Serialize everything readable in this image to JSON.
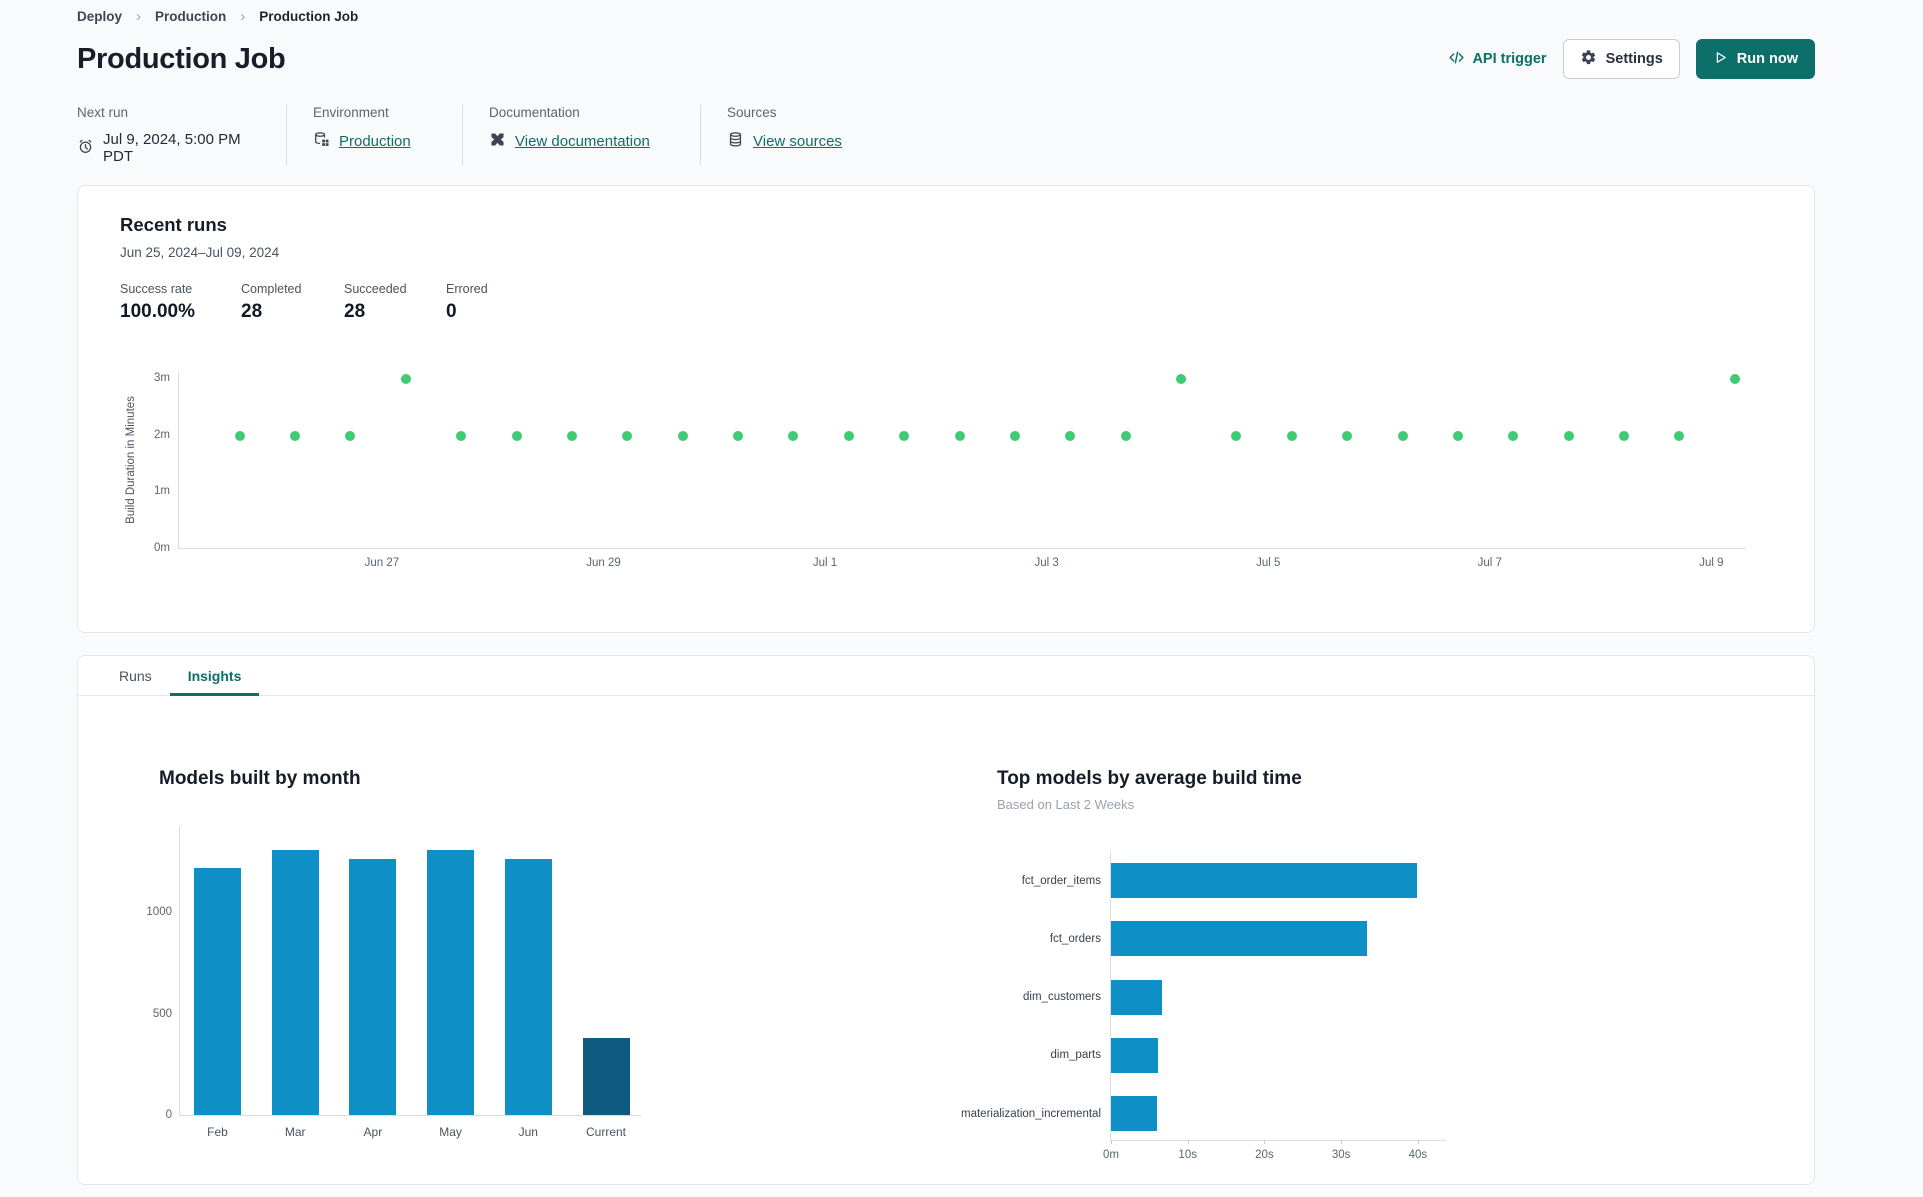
{
  "breadcrumb": {
    "items": [
      "Deploy",
      "Production",
      "Production Job"
    ]
  },
  "header": {
    "title": "Production Job",
    "api_trigger_label": "API trigger",
    "settings_label": "Settings",
    "run_now_label": "Run now"
  },
  "meta": {
    "next_run": {
      "label": "Next run",
      "value": "Jul 9, 2024, 5:00 PM PDT",
      "icon": "alarm-clock"
    },
    "environment": {
      "label": "Environment",
      "value": "Production",
      "icon": "database-grid"
    },
    "documentation": {
      "label": "Documentation",
      "value": "View documentation",
      "icon": "dbt-logo"
    },
    "sources": {
      "label": "Sources",
      "value": "View sources",
      "icon": "database-stack"
    }
  },
  "recent_runs": {
    "title": "Recent runs",
    "date_range": "Jun 25, 2024–Jul 09, 2024",
    "stats": [
      {
        "label": "Success rate",
        "value": "100.00%"
      },
      {
        "label": "Completed",
        "value": "28"
      },
      {
        "label": "Succeeded",
        "value": "28"
      },
      {
        "label": "Errored",
        "value": "0"
      }
    ]
  },
  "tabs": [
    {
      "label": "Runs",
      "active": false
    },
    {
      "label": "Insights",
      "active": true
    }
  ],
  "colors": {
    "accent_teal": "#0c6f6a",
    "dot_green": "#3ecb73",
    "bar_blue": "#0e8fc6",
    "bar_dark": "#0e5a80"
  },
  "chart_data": [
    {
      "type": "scatter",
      "title": "Recent runs build duration",
      "ylabel": "Build Duration in Minutes",
      "y_max": 3.14,
      "y_ticks": [
        {
          "label": "3m",
          "minutes": 3
        },
        {
          "label": "2m",
          "minutes": 2
        },
        {
          "label": "1m",
          "minutes": 1
        },
        {
          "label": "0m",
          "minutes": 0
        }
      ],
      "x_ticks": [
        {
          "label": "Jun 27",
          "pct": 12.95
        },
        {
          "label": "Jun 29",
          "pct": 27.09
        },
        {
          "label": "Jul 1",
          "pct": 41.23
        },
        {
          "label": "Jul 3",
          "pct": 55.37
        },
        {
          "label": "Jul 5",
          "pct": 69.51
        },
        {
          "label": "Jul 7",
          "pct": 83.65
        },
        {
          "label": "Jul 9",
          "pct": 97.79
        }
      ],
      "points": [
        {
          "x_pct": 3.87,
          "minutes": 1.98
        },
        {
          "x_pct": 7.4,
          "minutes": 1.98
        },
        {
          "x_pct": 10.94,
          "minutes": 1.98
        },
        {
          "x_pct": 14.47,
          "minutes": 2.98
        },
        {
          "x_pct": 18.0,
          "minutes": 1.98
        },
        {
          "x_pct": 21.54,
          "minutes": 1.98
        },
        {
          "x_pct": 25.07,
          "minutes": 1.98
        },
        {
          "x_pct": 28.61,
          "minutes": 1.98
        },
        {
          "x_pct": 32.14,
          "minutes": 1.98
        },
        {
          "x_pct": 35.67,
          "minutes": 1.98
        },
        {
          "x_pct": 39.21,
          "minutes": 1.98
        },
        {
          "x_pct": 42.74,
          "minutes": 1.98
        },
        {
          "x_pct": 46.27,
          "minutes": 1.98
        },
        {
          "x_pct": 49.81,
          "minutes": 1.98
        },
        {
          "x_pct": 53.34,
          "minutes": 1.98
        },
        {
          "x_pct": 56.88,
          "minutes": 1.98
        },
        {
          "x_pct": 60.41,
          "minutes": 1.98
        },
        {
          "x_pct": 63.94,
          "minutes": 2.98
        },
        {
          "x_pct": 67.48,
          "minutes": 1.98
        },
        {
          "x_pct": 71.01,
          "minutes": 1.98
        },
        {
          "x_pct": 74.54,
          "minutes": 1.98
        },
        {
          "x_pct": 78.08,
          "minutes": 1.98
        },
        {
          "x_pct": 81.61,
          "minutes": 1.98
        },
        {
          "x_pct": 85.15,
          "minutes": 1.98
        },
        {
          "x_pct": 88.68,
          "minutes": 1.98
        },
        {
          "x_pct": 92.21,
          "minutes": 1.98
        },
        {
          "x_pct": 95.75,
          "minutes": 1.98
        },
        {
          "x_pct": 99.28,
          "minutes": 2.98
        }
      ]
    },
    {
      "type": "bar",
      "title": "Models built by month",
      "categories": [
        "Feb",
        "Mar",
        "Apr",
        "May",
        "Jun",
        "Current"
      ],
      "values": [
        1220,
        1305,
        1260,
        1305,
        1260,
        380
      ],
      "ylim": [
        0,
        1430
      ],
      "y_ticks": [
        0,
        500,
        1000
      ],
      "bar_colors": [
        "#0e8fc6",
        "#0e8fc6",
        "#0e8fc6",
        "#0e8fc6",
        "#0e8fc6",
        "#0e5a80"
      ]
    },
    {
      "type": "bar_horizontal",
      "title": "Top models by average build time",
      "subtitle": "Based on Last 2 Weeks",
      "categories": [
        "fct_order_items",
        "fct_orders",
        "dim_customers",
        "dim_parts",
        "materialization_incremental"
      ],
      "values_seconds": [
        39.9,
        33.4,
        6.6,
        6.1,
        6.0
      ],
      "xlim": [
        0,
        43.8
      ],
      "x_ticks": [
        {
          "label": "0m",
          "seconds": 0
        },
        {
          "label": "10s",
          "seconds": 10
        },
        {
          "label": "20s",
          "seconds": 20
        },
        {
          "label": "30s",
          "seconds": 30
        },
        {
          "label": "40s",
          "seconds": 40
        }
      ],
      "bar_color": "#0e8fc6"
    }
  ]
}
